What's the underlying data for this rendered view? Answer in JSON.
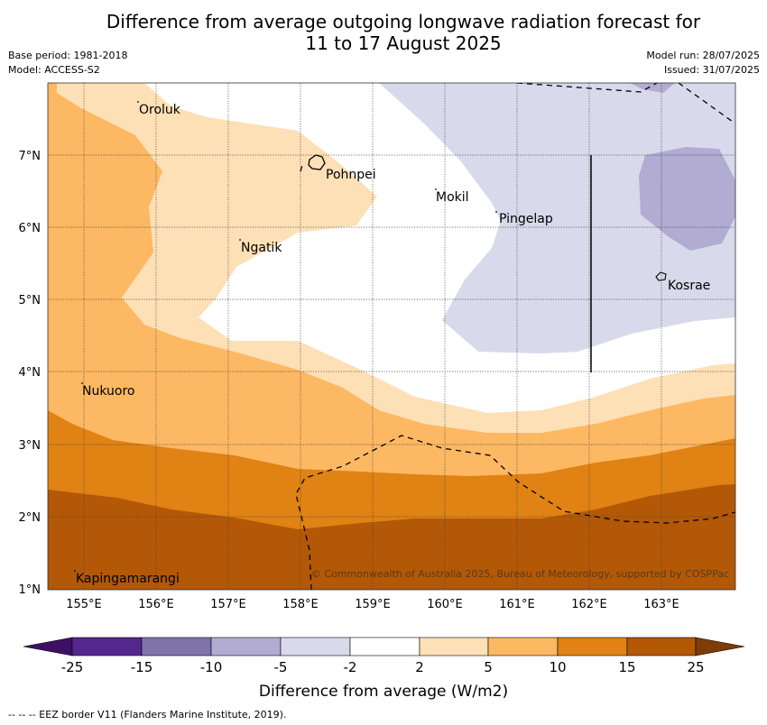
{
  "header": {
    "title_line1": "Difference from average outgoing longwave radiation forecast for",
    "title_line2": "11 to 17 August 2025",
    "base_period": "Base period: 1981-2018",
    "model": "Model: ACCESS-S2",
    "model_run": "Model run: 28/07/2025",
    "issued": "Issued: 31/07/2025"
  },
  "map": {
    "lon_ticks": [
      "155°E",
      "156°E",
      "157°E",
      "158°E",
      "159°E",
      "160°E",
      "161°E",
      "162°E",
      "163°E"
    ],
    "lat_ticks": [
      "7°N",
      "6°N",
      "5°N",
      "4°N",
      "3°N",
      "2°N",
      "1°N"
    ],
    "places": [
      {
        "name": "Oroluk",
        "lon": 155.8,
        "lat": 7.7
      },
      {
        "name": "Pohnpei",
        "lon": 158.3,
        "lat": 6.9
      },
      {
        "name": "Mokil",
        "lon": 160.0,
        "lat": 6.5
      },
      {
        "name": "Pingelap",
        "lon": 160.8,
        "lat": 6.2
      },
      {
        "name": "Ngatik",
        "lon": 157.2,
        "lat": 5.8
      },
      {
        "name": "Kosrae",
        "lon": 163.0,
        "lat": 5.3
      },
      {
        "name": "Nukuoro",
        "lon": 154.9,
        "lat": 3.8
      },
      {
        "name": "Kapingamarangi",
        "lon": 154.8,
        "lat": 1.1
      }
    ],
    "copyright": "© Commonwealth of Australia 2025, Bureau of Meteorology, supported by COSPPac"
  },
  "colorbar": {
    "labels": [
      "-25",
      "-15",
      "-10",
      "-5",
      "-2",
      "2",
      "5",
      "10",
      "15",
      "25"
    ],
    "colors": [
      "#3d1066",
      "#54278f",
      "#8073ac",
      "#b2abd2",
      "#d8daeb",
      "#ffffff",
      "#fee0b6",
      "#fdb863",
      "#e08214",
      "#b35806",
      "#7f3b08"
    ],
    "title": "Difference from average (W/m2)"
  },
  "footer": {
    "legend": "--  --  -- EEZ border V11 (Flanders Marine Institute, 2019)."
  }
}
